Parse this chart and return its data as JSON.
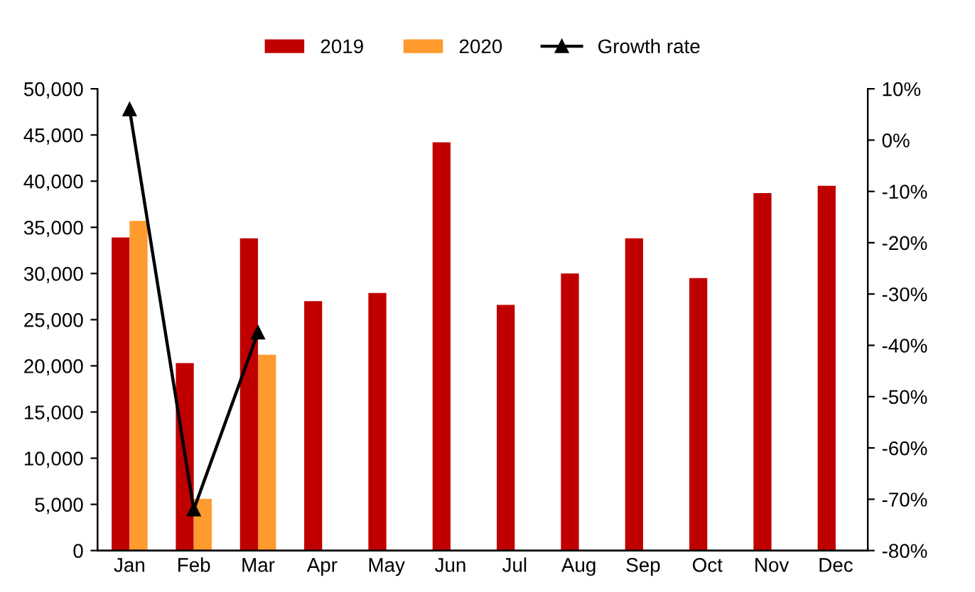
{
  "chart_data": {
    "type": "bar",
    "categories": [
      "Jan",
      "Feb",
      "Mar",
      "Apr",
      "May",
      "Jun",
      "Jul",
      "Aug",
      "Sep",
      "Oct",
      "Nov",
      "Dec"
    ],
    "series": [
      {
        "name": "2019",
        "color": "#c00000",
        "values": [
          33900,
          20300,
          33800,
          27000,
          27900,
          44200,
          26600,
          30000,
          33800,
          29500,
          38700,
          39500
        ]
      },
      {
        "name": "2020",
        "color": "#ff9a2e",
        "values": [
          35700,
          5600,
          21200,
          null,
          null,
          null,
          null,
          null,
          null,
          null,
          null,
          null
        ]
      },
      {
        "name": "Growth rate",
        "type": "line",
        "axis": "y2",
        "color": "#000000",
        "marker": "triangle",
        "values": [
          6,
          -72,
          -37.5,
          null,
          null,
          null,
          null,
          null,
          null,
          null,
          null,
          null
        ]
      }
    ],
    "ylim": [
      0,
      50000
    ],
    "yticks": [
      {
        "value": 0,
        "label": "0"
      },
      {
        "value": 5000,
        "label": "5,000"
      },
      {
        "value": 10000,
        "label": "10,000"
      },
      {
        "value": 15000,
        "label": "15,000"
      },
      {
        "value": 20000,
        "label": "20,000"
      },
      {
        "value": 25000,
        "label": "25,000"
      },
      {
        "value": 30000,
        "label": "30,000"
      },
      {
        "value": 35000,
        "label": "35,000"
      },
      {
        "value": 40000,
        "label": "40,000"
      },
      {
        "value": 45000,
        "label": "45,000"
      },
      {
        "value": 50000,
        "label": "50,000"
      }
    ],
    "y2lim": [
      -80,
      10
    ],
    "y2ticks": [
      {
        "value": -80,
        "label": "-80%"
      },
      {
        "value": -70,
        "label": "-70%"
      },
      {
        "value": -60,
        "label": "-60%"
      },
      {
        "value": -50,
        "label": "-50%"
      },
      {
        "value": -40,
        "label": "-40%"
      },
      {
        "value": -30,
        "label": "-30%"
      },
      {
        "value": -20,
        "label": "-20%"
      },
      {
        "value": -10,
        "label": "-10%"
      },
      {
        "value": 0,
        "label": "0%"
      },
      {
        "value": 10,
        "label": "10%"
      }
    ],
    "grid": false,
    "legend": "top"
  }
}
